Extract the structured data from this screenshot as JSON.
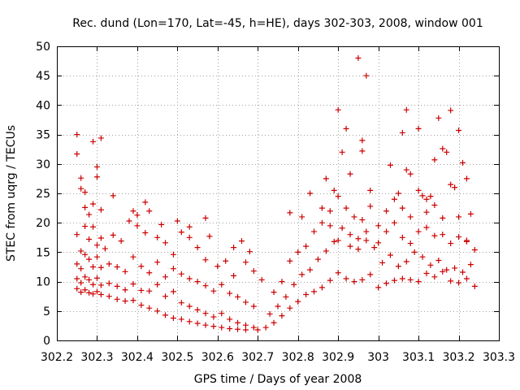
{
  "chart_data": {
    "type": "scatter",
    "title": "Rec. dund (Lon=170, Lat=-45, h=HE), days 302-303, 2008, window 001",
    "xlabel": "GPS time / Days of year 2008",
    "ylabel": "STEC from uqrg / TECUs",
    "xlim": [
      302.2,
      303.3
    ],
    "ylim": [
      0,
      50
    ],
    "x_ticks": [
      302.2,
      302.3,
      302.4,
      302.5,
      302.6,
      302.7,
      302.8,
      302.9,
      303,
      303.1,
      303.2,
      303.3
    ],
    "x_tick_labels": [
      "302.2",
      "302.3",
      "302.4",
      "302.5",
      "302.6",
      "302.7",
      "302.8",
      "302.9",
      "303",
      "303.1",
      "303.2",
      "303.3"
    ],
    "y_ticks": [
      0,
      5,
      10,
      15,
      20,
      25,
      30,
      35,
      40,
      45,
      50
    ],
    "y_tick_labels": [
      "0",
      "5",
      "10",
      "15",
      "20",
      "25",
      "30",
      "35",
      "40",
      "45",
      "50"
    ],
    "grid": true,
    "marker": "plus",
    "color": "#cc0000",
    "points": [
      [
        302.25,
        35
      ],
      [
        302.25,
        31.7
      ],
      [
        302.26,
        27.6
      ],
      [
        302.26,
        25.8
      ],
      [
        302.27,
        25.2
      ],
      [
        302.27,
        22.6
      ],
      [
        302.28,
        21.4
      ],
      [
        302.29,
        23.2
      ],
      [
        302.29,
        33.8
      ],
      [
        302.3,
        29.5
      ],
      [
        302.3,
        27.8
      ],
      [
        302.31,
        34.4
      ],
      [
        302.31,
        22.2
      ],
      [
        302.34,
        24.6
      ],
      [
        302.39,
        22.0
      ],
      [
        302.4,
        21.3
      ],
      [
        302.42,
        23.5
      ],
      [
        302.43,
        22.0
      ],
      [
        302.46,
        19.7
      ],
      [
        302.5,
        20.3
      ],
      [
        302.53,
        19.3
      ],
      [
        302.57,
        20.8
      ],
      [
        302.58,
        17.7
      ],
      [
        302.64,
        15.8
      ],
      [
        302.66,
        16.9
      ],
      [
        302.68,
        15.1
      ],
      [
        302.25,
        18.0
      ],
      [
        302.26,
        15.2
      ],
      [
        302.27,
        19.4
      ],
      [
        302.28,
        17.2
      ],
      [
        302.29,
        19.3
      ],
      [
        302.3,
        16.2
      ],
      [
        302.31,
        17.4
      ],
      [
        302.32,
        15.6
      ],
      [
        302.34,
        17.9
      ],
      [
        302.36,
        16.9
      ],
      [
        302.38,
        20.3
      ],
      [
        302.4,
        19.5
      ],
      [
        302.42,
        18.3
      ],
      [
        302.45,
        17.5
      ],
      [
        302.47,
        16.6
      ],
      [
        302.49,
        14.6
      ],
      [
        302.51,
        18.4
      ],
      [
        302.53,
        17.5
      ],
      [
        302.55,
        15.8
      ],
      [
        302.57,
        13.7
      ],
      [
        302.6,
        12.6
      ],
      [
        302.62,
        13.5
      ],
      [
        302.64,
        11.0
      ],
      [
        302.67,
        13.3
      ],
      [
        302.69,
        11.8
      ],
      [
        302.71,
        10.3
      ],
      [
        302.25,
        13.0
      ],
      [
        302.26,
        12.2
      ],
      [
        302.27,
        14.6
      ],
      [
        302.28,
        13.8
      ],
      [
        302.29,
        12.5
      ],
      [
        302.3,
        14.2
      ],
      [
        302.31,
        12.4
      ],
      [
        302.33,
        13.0
      ],
      [
        302.35,
        12.5
      ],
      [
        302.37,
        11.7
      ],
      [
        302.39,
        14.2
      ],
      [
        302.41,
        12.6
      ],
      [
        302.43,
        11.5
      ],
      [
        302.45,
        13.3
      ],
      [
        302.47,
        10.8
      ],
      [
        302.49,
        12.2
      ],
      [
        302.51,
        11.3
      ],
      [
        302.53,
        10.5
      ],
      [
        302.55,
        10.0
      ],
      [
        302.57,
        9.3
      ],
      [
        302.59,
        8.4
      ],
      [
        302.61,
        9.5
      ],
      [
        302.63,
        8.0
      ],
      [
        302.65,
        7.4
      ],
      [
        302.67,
        6.5
      ],
      [
        302.69,
        5.8
      ],
      [
        302.25,
        10.5
      ],
      [
        302.26,
        9.8
      ],
      [
        302.27,
        10.8
      ],
      [
        302.28,
        10.3
      ],
      [
        302.29,
        9.5
      ],
      [
        302.3,
        10.6
      ],
      [
        302.31,
        9.4
      ],
      [
        302.33,
        9.7
      ],
      [
        302.35,
        9.2
      ],
      [
        302.37,
        8.6
      ],
      [
        302.39,
        9.6
      ],
      [
        302.41,
        8.5
      ],
      [
        302.43,
        8.4
      ],
      [
        302.45,
        9.5
      ],
      [
        302.47,
        7.5
      ],
      [
        302.49,
        8.3
      ],
      [
        302.51,
        6.4
      ],
      [
        302.53,
        5.8
      ],
      [
        302.55,
        5.2
      ],
      [
        302.57,
        4.6
      ],
      [
        302.59,
        4.0
      ],
      [
        302.61,
        4.6
      ],
      [
        302.63,
        3.6
      ],
      [
        302.65,
        3.0
      ],
      [
        302.67,
        2.6
      ],
      [
        302.69,
        2.2
      ],
      [
        302.25,
        8.8
      ],
      [
        302.26,
        8.2
      ],
      [
        302.27,
        8.6
      ],
      [
        302.28,
        8.1
      ],
      [
        302.29,
        7.9
      ],
      [
        302.3,
        8.3
      ],
      [
        302.31,
        7.8
      ],
      [
        302.33,
        7.5
      ],
      [
        302.35,
        7.0
      ],
      [
        302.37,
        6.7
      ],
      [
        302.39,
        6.8
      ],
      [
        302.41,
        6.0
      ],
      [
        302.43,
        5.5
      ],
      [
        302.45,
        5.0
      ],
      [
        302.47,
        4.3
      ],
      [
        302.49,
        3.8
      ],
      [
        302.51,
        3.6
      ],
      [
        302.53,
        3.2
      ],
      [
        302.55,
        2.9
      ],
      [
        302.57,
        2.6
      ],
      [
        302.59,
        2.4
      ],
      [
        302.61,
        2.2
      ],
      [
        302.63,
        2.0
      ],
      [
        302.65,
        1.9
      ],
      [
        302.67,
        1.8
      ],
      [
        302.7,
        1.8
      ],
      [
        302.72,
        2.2
      ],
      [
        302.74,
        3.0
      ],
      [
        302.76,
        4.2
      ],
      [
        302.78,
        5.5
      ],
      [
        302.8,
        6.6
      ],
      [
        302.82,
        7.8
      ],
      [
        302.84,
        8.3
      ],
      [
        302.86,
        9.0
      ],
      [
        302.88,
        10.2
      ],
      [
        302.9,
        11.5
      ],
      [
        302.92,
        10.5
      ],
      [
        302.94,
        10.0
      ],
      [
        302.96,
        10.3
      ],
      [
        302.98,
        11.2
      ],
      [
        303.0,
        9.0
      ],
      [
        303.02,
        9.7
      ],
      [
        303.04,
        10.2
      ],
      [
        303.06,
        10.5
      ],
      [
        303.08,
        10.3
      ],
      [
        303.1,
        10.0
      ],
      [
        303.12,
        11.4
      ],
      [
        303.14,
        10.8
      ],
      [
        303.16,
        11.7
      ],
      [
        303.18,
        10.1
      ],
      [
        303.2,
        9.8
      ],
      [
        303.22,
        10.5
      ],
      [
        303.24,
        9.2
      ],
      [
        302.73,
        4.5
      ],
      [
        302.75,
        5.8
      ],
      [
        302.77,
        7.4
      ],
      [
        302.79,
        9.5
      ],
      [
        302.81,
        11.2
      ],
      [
        302.83,
        12.0
      ],
      [
        302.85,
        13.8
      ],
      [
        302.87,
        15.2
      ],
      [
        302.89,
        16.8
      ],
      [
        302.91,
        19.1
      ],
      [
        302.93,
        18.0
      ],
      [
        302.95,
        17.3
      ],
      [
        302.97,
        18.5
      ],
      [
        302.99,
        15.8
      ],
      [
        303.01,
        13.2
      ],
      [
        303.03,
        14.5
      ],
      [
        303.05,
        12.6
      ],
      [
        303.07,
        13.4
      ],
      [
        303.09,
        15.0
      ],
      [
        303.11,
        14.2
      ],
      [
        303.13,
        12.8
      ],
      [
        303.15,
        13.6
      ],
      [
        303.17,
        12.0
      ],
      [
        303.19,
        12.3
      ],
      [
        303.21,
        11.6
      ],
      [
        303.23,
        12.9
      ],
      [
        302.74,
        8.2
      ],
      [
        302.76,
        10.0
      ],
      [
        302.78,
        13.5
      ],
      [
        302.8,
        15.0
      ],
      [
        302.82,
        16.0
      ],
      [
        302.84,
        18.5
      ],
      [
        302.86,
        20.0
      ],
      [
        302.88,
        22.0
      ],
      [
        302.9,
        24.5
      ],
      [
        302.92,
        22.5
      ],
      [
        302.94,
        21.0
      ],
      [
        302.96,
        20.5
      ],
      [
        302.98,
        22.8
      ],
      [
        303.0,
        19.5
      ],
      [
        303.02,
        18.5
      ],
      [
        303.04,
        20.0
      ],
      [
        303.06,
        17.5
      ],
      [
        303.08,
        16.5
      ],
      [
        303.1,
        18.5
      ],
      [
        303.12,
        19.2
      ],
      [
        303.14,
        17.8
      ],
      [
        303.16,
        18.0
      ],
      [
        303.18,
        16.5
      ],
      [
        303.2,
        17.6
      ],
      [
        303.22,
        16.8
      ],
      [
        303.24,
        15.4
      ],
      [
        302.78,
        21.7
      ],
      [
        302.81,
        21.0
      ],
      [
        302.83,
        25.0
      ],
      [
        302.87,
        27.5
      ],
      [
        302.89,
        25.5
      ],
      [
        302.9,
        39.2
      ],
      [
        302.91,
        32.0
      ],
      [
        302.92,
        36.0
      ],
      [
        302.93,
        28.3
      ],
      [
        302.95,
        48.0
      ],
      [
        302.96,
        34.0
      ],
      [
        302.96,
        32.2
      ],
      [
        302.97,
        45.0
      ],
      [
        302.98,
        25.5
      ],
      [
        303.03,
        29.8
      ],
      [
        303.05,
        25.0
      ],
      [
        303.06,
        35.3
      ],
      [
        303.07,
        39.2
      ],
      [
        303.07,
        29.0
      ],
      [
        303.08,
        28.3
      ],
      [
        303.1,
        36.0
      ],
      [
        303.11,
        24.6
      ],
      [
        303.12,
        21.8
      ],
      [
        303.13,
        24.5
      ],
      [
        303.14,
        30.7
      ],
      [
        303.15,
        37.8
      ],
      [
        303.16,
        32.6
      ],
      [
        303.17,
        32.0
      ],
      [
        303.18,
        39.1
      ],
      [
        303.19,
        26.0
      ],
      [
        303.2,
        35.7
      ],
      [
        303.21,
        30.2
      ],
      [
        303.22,
        27.5
      ],
      [
        303.23,
        21.5
      ],
      [
        302.86,
        22.5
      ],
      [
        302.88,
        19.5
      ],
      [
        302.9,
        17.0
      ],
      [
        302.93,
        16.0
      ],
      [
        302.95,
        15.5
      ],
      [
        302.97,
        17.0
      ],
      [
        303.0,
        16.6
      ],
      [
        303.02,
        22.0
      ],
      [
        303.04,
        24.0
      ],
      [
        303.06,
        22.5
      ],
      [
        303.08,
        21.0
      ],
      [
        303.1,
        25.5
      ],
      [
        303.12,
        24.0
      ],
      [
        303.14,
        23.0
      ],
      [
        303.16,
        20.8
      ],
      [
        303.18,
        26.5
      ],
      [
        303.2,
        21.0
      ],
      [
        303.22,
        17.0
      ]
    ]
  }
}
